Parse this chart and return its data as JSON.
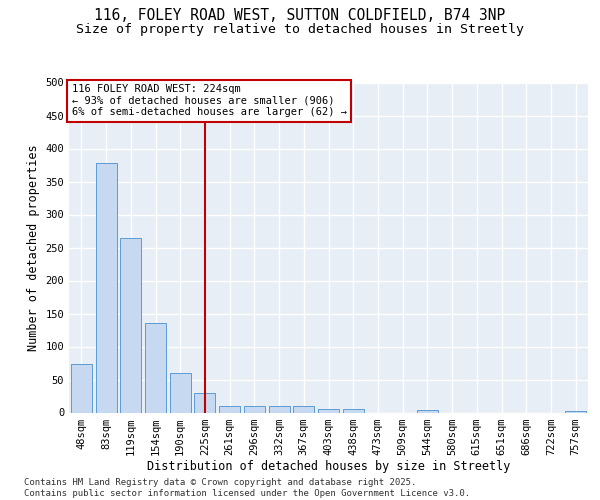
{
  "title_line1": "116, FOLEY ROAD WEST, SUTTON COLDFIELD, B74 3NP",
  "title_line2": "Size of property relative to detached houses in Streetly",
  "xlabel": "Distribution of detached houses by size in Streetly",
  "ylabel": "Number of detached properties",
  "categories": [
    "48sqm",
    "83sqm",
    "119sqm",
    "154sqm",
    "190sqm",
    "225sqm",
    "261sqm",
    "296sqm",
    "332sqm",
    "367sqm",
    "403sqm",
    "438sqm",
    "473sqm",
    "509sqm",
    "544sqm",
    "580sqm",
    "615sqm",
    "651sqm",
    "686sqm",
    "722sqm",
    "757sqm"
  ],
  "values": [
    73,
    378,
    265,
    135,
    60,
    30,
    10,
    10,
    10,
    10,
    5,
    5,
    0,
    0,
    4,
    0,
    0,
    0,
    0,
    0,
    3
  ],
  "bar_color": "#c6d9f0",
  "bar_edge_color": "#5b9bd5",
  "vline_index": 5,
  "vline_color": "#c00000",
  "annotation_text": "116 FOLEY ROAD WEST: 224sqm\n← 93% of detached houses are smaller (906)\n6% of semi-detached houses are larger (62) →",
  "annotation_box_color": "#c00000",
  "ylim": [
    0,
    500
  ],
  "yticks": [
    0,
    50,
    100,
    150,
    200,
    250,
    300,
    350,
    400,
    450,
    500
  ],
  "background_color": "#e8eef6",
  "grid_color": "#ffffff",
  "footer_text": "Contains HM Land Registry data © Crown copyright and database right 2025.\nContains public sector information licensed under the Open Government Licence v3.0.",
  "title_fontsize": 10.5,
  "subtitle_fontsize": 9.5,
  "axis_label_fontsize": 8.5,
  "tick_fontsize": 7.5,
  "footer_fontsize": 6.5,
  "annotation_fontsize": 7.5
}
